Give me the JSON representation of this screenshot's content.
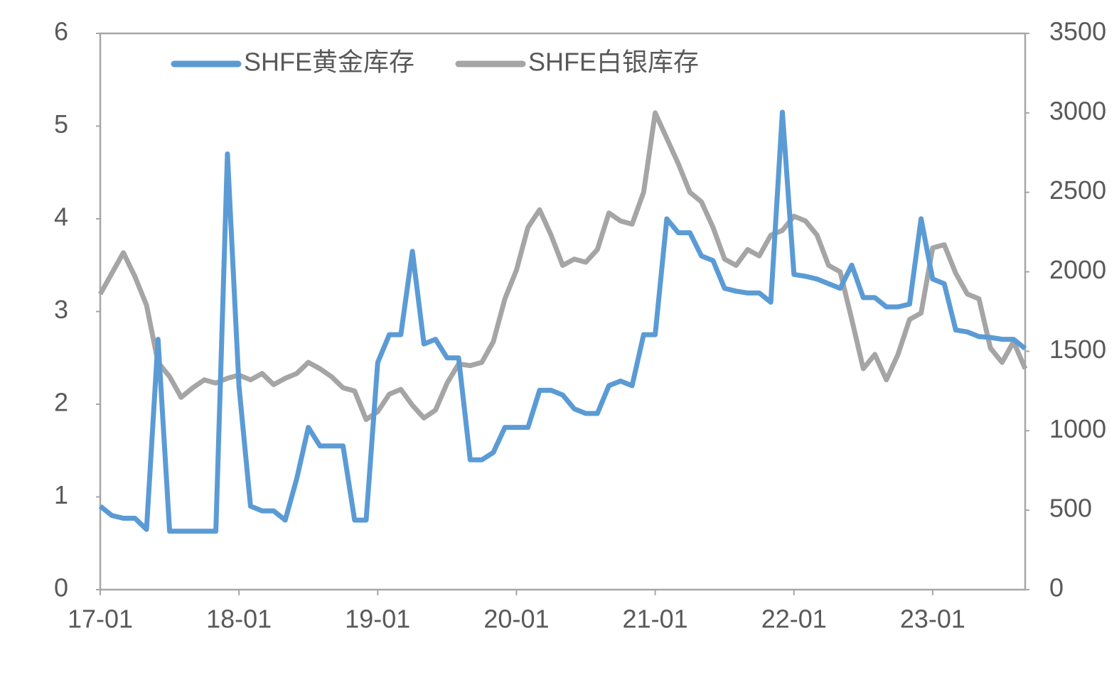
{
  "chart_data": {
    "type": "line",
    "categories": [
      "17-01",
      null,
      null,
      null,
      null,
      null,
      null,
      null,
      null,
      null,
      null,
      null,
      "18-01",
      null,
      null,
      null,
      null,
      null,
      null,
      null,
      null,
      null,
      null,
      null,
      "19-01",
      null,
      null,
      null,
      null,
      null,
      null,
      null,
      null,
      null,
      null,
      null,
      "20-01",
      null,
      null,
      null,
      null,
      null,
      null,
      null,
      null,
      null,
      null,
      null,
      "21-01",
      null,
      null,
      null,
      null,
      null,
      null,
      null,
      null,
      null,
      null,
      null,
      "22-01",
      null,
      null,
      null,
      null,
      null,
      null,
      null,
      null,
      null,
      null,
      null,
      "23-01",
      null,
      null,
      null,
      null,
      null,
      null,
      null,
      null
    ],
    "series": [
      {
        "name": "SHFE黄金库存",
        "color": "#5b9bd5",
        "values": [
          0.9,
          0.8,
          0.77,
          0.77,
          0.65,
          2.7,
          0.63,
          0.63,
          0.63,
          0.63,
          0.63,
          4.7,
          2.2,
          0.9,
          0.85,
          0.85,
          0.75,
          1.2,
          1.75,
          1.55,
          1.55,
          1.55,
          0.75,
          0.75,
          2.45,
          2.75,
          2.75,
          3.65,
          2.65,
          2.7,
          2.5,
          2.5,
          1.4,
          1.4,
          1.48,
          1.75,
          1.75,
          1.75,
          2.15,
          2.15,
          2.1,
          1.95,
          1.9,
          1.9,
          2.2,
          2.25,
          2.2,
          2.75,
          2.75,
          4.0,
          3.85,
          3.85,
          3.6,
          3.55,
          3.25,
          3.22,
          3.2,
          3.2,
          3.1,
          5.15,
          3.4,
          3.38,
          3.35,
          3.3,
          3.25,
          3.5,
          3.15,
          3.15,
          3.05,
          3.05,
          3.08,
          4.0,
          3.35,
          3.3,
          2.8,
          2.78,
          2.73,
          2.72,
          2.7,
          2.7,
          2.6
        ]
      },
      {
        "name": "SHFE白银库存",
        "color": "#a5a5a5",
        "axis": "y2",
        "values": [
          1860,
          1990,
          2120,
          1970,
          1790,
          1430,
          1340,
          1210,
          1270,
          1320,
          1300,
          1330,
          1350,
          1320,
          1360,
          1290,
          1330,
          1360,
          1430,
          1390,
          1340,
          1270,
          1250,
          1070,
          1120,
          1230,
          1260,
          1160,
          1080,
          1130,
          1300,
          1420,
          1410,
          1430,
          1560,
          1830,
          2010,
          2280,
          2390,
          2230,
          2040,
          2080,
          2060,
          2140,
          2370,
          2320,
          2300,
          2500,
          3000,
          2840,
          2680,
          2500,
          2440,
          2280,
          2080,
          2040,
          2140,
          2100,
          2230,
          2260,
          2350,
          2320,
          2230,
          2040,
          2000,
          1700,
          1390,
          1480,
          1320,
          1480,
          1700,
          1740,
          2150,
          2170,
          1990,
          1860,
          1830,
          1520,
          1430,
          1560,
          1390
        ]
      }
    ],
    "ylim": [
      0,
      6
    ],
    "yticks": [
      0,
      1,
      2,
      3,
      4,
      5,
      6
    ],
    "y2lim": [
      0,
      3500
    ],
    "y2ticks": [
      0,
      500,
      1000,
      1500,
      2000,
      2500,
      3000,
      3500
    ],
    "legend": "top"
  }
}
